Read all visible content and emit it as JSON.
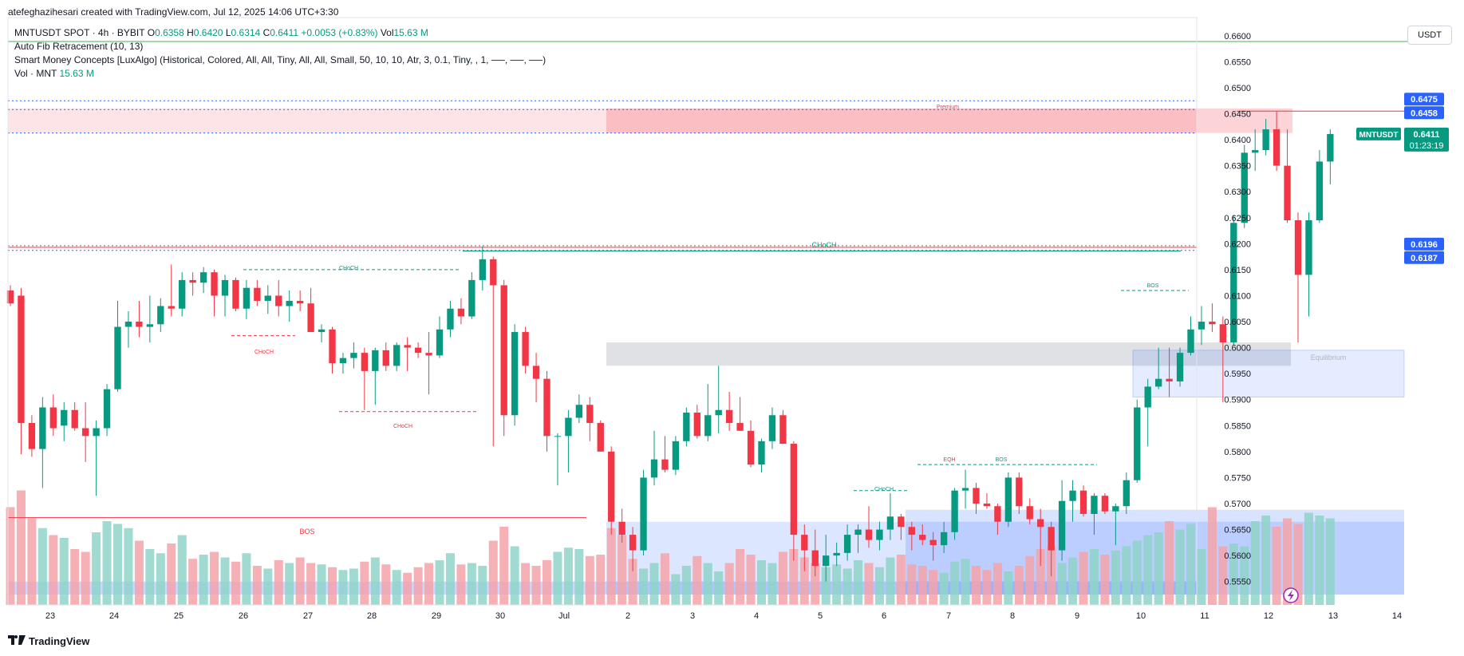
{
  "header": {
    "author_line": "atefeghazihesari created with TradingView.com, Jul 12, 2025 14:06 UTC+3:30"
  },
  "legend": {
    "symbol": "MNTUSDT SPOT · 4h · BYBIT",
    "o_label": "O",
    "o": "0.6358",
    "h_label": "H",
    "h": "0.6420",
    "l_label": "L",
    "l": "0.6314",
    "c_label": "C",
    "c": "0.6411",
    "change": "+0.0053 (+0.83%)",
    "vol_label": "Vol",
    "vol": "15.63 M",
    "indicator1": "Auto Fib Retracement (10, 13)",
    "indicator2": "Smart Money Concepts [LuxAlgo] (Historical, Colored, All, All, Tiny, All, All, Small, 50, 10, 10, Atr, 3, 0.1, Tiny, , 1, ──, ──, ──)",
    "indicator3_label": "Vol · MNT",
    "indicator3_value": "15.63 M"
  },
  "currency_button": "USDT",
  "branding": "TradingView",
  "colors": {
    "up": "#089981",
    "down": "#f23645",
    "vol_up": "#8fd3c8",
    "vol_down": "#f5a3aa",
    "accent": "#2962ff"
  },
  "chart_data": {
    "type": "candlestick",
    "symbol": "MNTUSDT",
    "interval": "4h",
    "x_ticks": [
      "23",
      "24",
      "25",
      "26",
      "27",
      "28",
      "29",
      "30",
      "Jul",
      "2",
      "3",
      "4",
      "5",
      "6",
      "7",
      "8",
      "9",
      "10",
      "11",
      "12",
      "13",
      "14"
    ],
    "y_ticks": [
      "0.6600",
      "0.6550",
      "0.6500",
      "0.6450",
      "0.6400",
      "0.6350",
      "0.6300",
      "0.6250",
      "0.6200",
      "0.6150",
      "0.6100",
      "0.6050",
      "0.6000",
      "0.5950",
      "0.5900",
      "0.5850",
      "0.5800",
      "0.5750",
      "0.5700",
      "0.5650",
      "0.5600",
      "0.5550"
    ],
    "ylim": [
      0.5505,
      0.6635
    ],
    "price_labels": [
      {
        "value": "0.6475",
        "color": "#2962ff",
        "y": 0.6475
      },
      {
        "value": "0.6458",
        "color": "#2962ff",
        "y": 0.6458
      },
      {
        "value": "0.6196",
        "color": "#2962ff",
        "y": 0.6196
      },
      {
        "value": "0.6187",
        "color": "#2962ff",
        "y": 0.6187
      }
    ],
    "last_price": {
      "symbol": "MNTUSDT",
      "value": "0.6411",
      "countdown": "01:23:19",
      "y": 0.6411
    },
    "annotations": [
      {
        "text": "Premium",
        "color": "#f23645"
      },
      {
        "text": "CHoCH",
        "color": "#089981"
      },
      {
        "text": "CHoCH",
        "color": "#089981"
      },
      {
        "text": "CHoCH",
        "color": "#f23645"
      },
      {
        "text": "CHoCH",
        "color": "#f23645"
      },
      {
        "text": "BOS",
        "color": "#f23645"
      },
      {
        "text": "BOS",
        "color": "#089981"
      },
      {
        "text": "BOS",
        "color": "#089981"
      },
      {
        "text": "CHoCH",
        "color": "#089981"
      },
      {
        "text": "EQH",
        "color": "#f23645"
      },
      {
        "text": "Equilibrium",
        "color": "#b2b5be"
      }
    ],
    "candles": [
      {
        "o": 0.611,
        "h": 0.612,
        "l": 0.608,
        "c": 0.6085
      },
      {
        "o": 0.61,
        "h": 0.6115,
        "l": 0.5795,
        "c": 0.5855
      },
      {
        "o": 0.5855,
        "h": 0.587,
        "l": 0.579,
        "c": 0.5805
      },
      {
        "o": 0.5805,
        "h": 0.5905,
        "l": 0.573,
        "c": 0.5885
      },
      {
        "o": 0.5885,
        "h": 0.591,
        "l": 0.583,
        "c": 0.5845
      },
      {
        "o": 0.585,
        "h": 0.5895,
        "l": 0.582,
        "c": 0.588
      },
      {
        "o": 0.588,
        "h": 0.5895,
        "l": 0.584,
        "c": 0.5845
      },
      {
        "o": 0.5845,
        "h": 0.5895,
        "l": 0.578,
        "c": 0.583
      },
      {
        "o": 0.583,
        "h": 0.586,
        "l": 0.5715,
        "c": 0.5845
      },
      {
        "o": 0.5845,
        "h": 0.593,
        "l": 0.583,
        "c": 0.592
      },
      {
        "o": 0.592,
        "h": 0.609,
        "l": 0.5915,
        "c": 0.604
      },
      {
        "o": 0.604,
        "h": 0.607,
        "l": 0.6,
        "c": 0.605
      },
      {
        "o": 0.605,
        "h": 0.609,
        "l": 0.602,
        "c": 0.604
      },
      {
        "o": 0.604,
        "h": 0.61,
        "l": 0.601,
        "c": 0.6045
      },
      {
        "o": 0.6045,
        "h": 0.6095,
        "l": 0.603,
        "c": 0.608
      },
      {
        "o": 0.608,
        "h": 0.616,
        "l": 0.606,
        "c": 0.6075
      },
      {
        "o": 0.6075,
        "h": 0.6145,
        "l": 0.606,
        "c": 0.613
      },
      {
        "o": 0.613,
        "h": 0.6145,
        "l": 0.61,
        "c": 0.6125
      },
      {
        "o": 0.6125,
        "h": 0.6155,
        "l": 0.6105,
        "c": 0.6145
      },
      {
        "o": 0.6145,
        "h": 0.615,
        "l": 0.606,
        "c": 0.61
      },
      {
        "o": 0.61,
        "h": 0.614,
        "l": 0.606,
        "c": 0.613
      },
      {
        "o": 0.613,
        "h": 0.6135,
        "l": 0.607,
        "c": 0.6075
      },
      {
        "o": 0.6075,
        "h": 0.613,
        "l": 0.6055,
        "c": 0.6115
      },
      {
        "o": 0.6115,
        "h": 0.613,
        "l": 0.608,
        "c": 0.609
      },
      {
        "o": 0.609,
        "h": 0.612,
        "l": 0.6065,
        "c": 0.61
      },
      {
        "o": 0.61,
        "h": 0.613,
        "l": 0.606,
        "c": 0.608
      },
      {
        "o": 0.608,
        "h": 0.611,
        "l": 0.605,
        "c": 0.609
      },
      {
        "o": 0.609,
        "h": 0.611,
        "l": 0.607,
        "c": 0.6085
      },
      {
        "o": 0.6085,
        "h": 0.6115,
        "l": 0.603,
        "c": 0.603
      },
      {
        "o": 0.603,
        "h": 0.6045,
        "l": 0.601,
        "c": 0.6035
      },
      {
        "o": 0.6035,
        "h": 0.604,
        "l": 0.595,
        "c": 0.597
      },
      {
        "o": 0.597,
        "h": 0.599,
        "l": 0.595,
        "c": 0.598
      },
      {
        "o": 0.598,
        "h": 0.601,
        "l": 0.596,
        "c": 0.599
      },
      {
        "o": 0.599,
        "h": 0.6,
        "l": 0.588,
        "c": 0.5955
      },
      {
        "o": 0.5955,
        "h": 0.6,
        "l": 0.589,
        "c": 0.5995
      },
      {
        "o": 0.5995,
        "h": 0.601,
        "l": 0.5955,
        "c": 0.5965
      },
      {
        "o": 0.5965,
        "h": 0.601,
        "l": 0.5955,
        "c": 0.6005
      },
      {
        "o": 0.6005,
        "h": 0.602,
        "l": 0.5955,
        "c": 0.6
      },
      {
        "o": 0.6,
        "h": 0.601,
        "l": 0.598,
        "c": 0.599
      },
      {
        "o": 0.599,
        "h": 0.603,
        "l": 0.591,
        "c": 0.5985
      },
      {
        "o": 0.5985,
        "h": 0.606,
        "l": 0.598,
        "c": 0.6035
      },
      {
        "o": 0.6035,
        "h": 0.609,
        "l": 0.602,
        "c": 0.6075
      },
      {
        "o": 0.6075,
        "h": 0.6095,
        "l": 0.6045,
        "c": 0.606
      },
      {
        "o": 0.606,
        "h": 0.6145,
        "l": 0.6055,
        "c": 0.613
      },
      {
        "o": 0.613,
        "h": 0.6195,
        "l": 0.611,
        "c": 0.617
      },
      {
        "o": 0.617,
        "h": 0.6175,
        "l": 0.581,
        "c": 0.612
      },
      {
        "o": 0.612,
        "h": 0.613,
        "l": 0.583,
        "c": 0.587
      },
      {
        "o": 0.587,
        "h": 0.6045,
        "l": 0.585,
        "c": 0.603
      },
      {
        "o": 0.603,
        "h": 0.604,
        "l": 0.595,
        "c": 0.5965
      },
      {
        "o": 0.5965,
        "h": 0.599,
        "l": 0.5895,
        "c": 0.594
      },
      {
        "o": 0.594,
        "h": 0.5955,
        "l": 0.58,
        "c": 0.583
      },
      {
        "o": 0.583,
        "h": 0.5835,
        "l": 0.5735,
        "c": 0.583
      },
      {
        "o": 0.583,
        "h": 0.588,
        "l": 0.576,
        "c": 0.5865
      },
      {
        "o": 0.5865,
        "h": 0.591,
        "l": 0.5855,
        "c": 0.589
      },
      {
        "o": 0.589,
        "h": 0.5905,
        "l": 0.582,
        "c": 0.5855
      },
      {
        "o": 0.5855,
        "h": 0.586,
        "l": 0.58,
        "c": 0.58
      },
      {
        "o": 0.58,
        "h": 0.581,
        "l": 0.564,
        "c": 0.5665
      },
      {
        "o": 0.5665,
        "h": 0.569,
        "l": 0.5625,
        "c": 0.564
      },
      {
        "o": 0.564,
        "h": 0.5655,
        "l": 0.557,
        "c": 0.561
      },
      {
        "o": 0.561,
        "h": 0.5765,
        "l": 0.56,
        "c": 0.575
      },
      {
        "o": 0.575,
        "h": 0.584,
        "l": 0.5735,
        "c": 0.5785
      },
      {
        "o": 0.5785,
        "h": 0.583,
        "l": 0.576,
        "c": 0.5765
      },
      {
        "o": 0.5765,
        "h": 0.583,
        "l": 0.5755,
        "c": 0.582
      },
      {
        "o": 0.582,
        "h": 0.5885,
        "l": 0.581,
        "c": 0.5875
      },
      {
        "o": 0.5875,
        "h": 0.589,
        "l": 0.5825,
        "c": 0.583
      },
      {
        "o": 0.583,
        "h": 0.593,
        "l": 0.582,
        "c": 0.587
      },
      {
        "o": 0.587,
        "h": 0.5965,
        "l": 0.5835,
        "c": 0.588
      },
      {
        "o": 0.588,
        "h": 0.5915,
        "l": 0.584,
        "c": 0.5855
      },
      {
        "o": 0.5855,
        "h": 0.5905,
        "l": 0.584,
        "c": 0.584
      },
      {
        "o": 0.584,
        "h": 0.586,
        "l": 0.577,
        "c": 0.5775
      },
      {
        "o": 0.5775,
        "h": 0.5825,
        "l": 0.576,
        "c": 0.582
      },
      {
        "o": 0.582,
        "h": 0.5885,
        "l": 0.5805,
        "c": 0.587
      },
      {
        "o": 0.587,
        "h": 0.588,
        "l": 0.582,
        "c": 0.5815
      },
      {
        "o": 0.5815,
        "h": 0.582,
        "l": 0.559,
        "c": 0.564
      },
      {
        "o": 0.564,
        "h": 0.566,
        "l": 0.557,
        "c": 0.561
      },
      {
        "o": 0.561,
        "h": 0.565,
        "l": 0.556,
        "c": 0.558
      },
      {
        "o": 0.558,
        "h": 0.564,
        "l": 0.555,
        "c": 0.56
      },
      {
        "o": 0.56,
        "h": 0.5625,
        "l": 0.558,
        "c": 0.5605
      },
      {
        "o": 0.5605,
        "h": 0.566,
        "l": 0.559,
        "c": 0.564
      },
      {
        "o": 0.564,
        "h": 0.566,
        "l": 0.5605,
        "c": 0.565
      },
      {
        "o": 0.565,
        "h": 0.5695,
        "l": 0.5615,
        "c": 0.563
      },
      {
        "o": 0.563,
        "h": 0.5665,
        "l": 0.561,
        "c": 0.565
      },
      {
        "o": 0.565,
        "h": 0.572,
        "l": 0.563,
        "c": 0.5675
      },
      {
        "o": 0.5675,
        "h": 0.568,
        "l": 0.563,
        "c": 0.5655
      },
      {
        "o": 0.5655,
        "h": 0.5665,
        "l": 0.561,
        "c": 0.564
      },
      {
        "o": 0.564,
        "h": 0.566,
        "l": 0.562,
        "c": 0.563
      },
      {
        "o": 0.563,
        "h": 0.5645,
        "l": 0.559,
        "c": 0.562
      },
      {
        "o": 0.562,
        "h": 0.5665,
        "l": 0.5605,
        "c": 0.5645
      },
      {
        "o": 0.5645,
        "h": 0.573,
        "l": 0.563,
        "c": 0.5725
      },
      {
        "o": 0.5725,
        "h": 0.5765,
        "l": 0.569,
        "c": 0.573
      },
      {
        "o": 0.573,
        "h": 0.574,
        "l": 0.568,
        "c": 0.57
      },
      {
        "o": 0.57,
        "h": 0.572,
        "l": 0.569,
        "c": 0.5695
      },
      {
        "o": 0.5695,
        "h": 0.57,
        "l": 0.564,
        "c": 0.5665
      },
      {
        "o": 0.5665,
        "h": 0.576,
        "l": 0.5655,
        "c": 0.575
      },
      {
        "o": 0.575,
        "h": 0.576,
        "l": 0.568,
        "c": 0.5695
      },
      {
        "o": 0.5695,
        "h": 0.571,
        "l": 0.566,
        "c": 0.567
      },
      {
        "o": 0.567,
        "h": 0.569,
        "l": 0.558,
        "c": 0.5655
      },
      {
        "o": 0.5655,
        "h": 0.5665,
        "l": 0.556,
        "c": 0.561
      },
      {
        "o": 0.561,
        "h": 0.5745,
        "l": 0.559,
        "c": 0.5705
      },
      {
        "o": 0.5705,
        "h": 0.5745,
        "l": 0.5665,
        "c": 0.5725
      },
      {
        "o": 0.5725,
        "h": 0.5735,
        "l": 0.5675,
        "c": 0.568
      },
      {
        "o": 0.568,
        "h": 0.572,
        "l": 0.564,
        "c": 0.5715
      },
      {
        "o": 0.5715,
        "h": 0.572,
        "l": 0.568,
        "c": 0.5685
      },
      {
        "o": 0.5685,
        "h": 0.57,
        "l": 0.562,
        "c": 0.5695
      },
      {
        "o": 0.5695,
        "h": 0.576,
        "l": 0.568,
        "c": 0.5745
      },
      {
        "o": 0.5745,
        "h": 0.59,
        "l": 0.574,
        "c": 0.5885
      },
      {
        "o": 0.5885,
        "h": 0.594,
        "l": 0.581,
        "c": 0.5925
      },
      {
        "o": 0.5925,
        "h": 0.6,
        "l": 0.592,
        "c": 0.594
      },
      {
        "o": 0.594,
        "h": 0.6,
        "l": 0.5905,
        "c": 0.5935
      },
      {
        "o": 0.5935,
        "h": 0.6,
        "l": 0.5925,
        "c": 0.599
      },
      {
        "o": 0.599,
        "h": 0.606,
        "l": 0.5985,
        "c": 0.6035
      },
      {
        "o": 0.6035,
        "h": 0.608,
        "l": 0.6005,
        "c": 0.605
      },
      {
        "o": 0.605,
        "h": 0.6085,
        "l": 0.603,
        "c": 0.6045
      },
      {
        "o": 0.6045,
        "h": 0.606,
        "l": 0.5895,
        "c": 0.601
      },
      {
        "o": 0.601,
        "h": 0.6255,
        "l": 0.6005,
        "c": 0.624
      },
      {
        "o": 0.624,
        "h": 0.639,
        "l": 0.623,
        "c": 0.6375
      },
      {
        "o": 0.6375,
        "h": 0.642,
        "l": 0.634,
        "c": 0.638
      },
      {
        "o": 0.638,
        "h": 0.644,
        "l": 0.637,
        "c": 0.642
      },
      {
        "o": 0.642,
        "h": 0.6455,
        "l": 0.634,
        "c": 0.635
      },
      {
        "o": 0.635,
        "h": 0.642,
        "l": 0.624,
        "c": 0.6245
      },
      {
        "o": 0.6245,
        "h": 0.626,
        "l": 0.601,
        "c": 0.614
      },
      {
        "o": 0.614,
        "h": 0.626,
        "l": 0.606,
        "c": 0.6245
      },
      {
        "o": 0.6245,
        "h": 0.638,
        "l": 0.624,
        "c": 0.6358
      },
      {
        "o": 0.6358,
        "h": 0.642,
        "l": 0.6314,
        "c": 0.6411
      }
    ],
    "volume_scale_note": "relative",
    "volumes": [
      0.7,
      0.82,
      0.62,
      0.55,
      0.5,
      0.48,
      0.4,
      0.38,
      0.52,
      0.6,
      0.58,
      0.55,
      0.46,
      0.4,
      0.37,
      0.44,
      0.5,
      0.33,
      0.36,
      0.38,
      0.34,
      0.31,
      0.37,
      0.28,
      0.26,
      0.32,
      0.3,
      0.34,
      0.3,
      0.29,
      0.27,
      0.25,
      0.26,
      0.31,
      0.34,
      0.29,
      0.25,
      0.23,
      0.27,
      0.3,
      0.32,
      0.37,
      0.29,
      0.3,
      0.28,
      0.46,
      0.56,
      0.42,
      0.3,
      0.28,
      0.32,
      0.38,
      0.41,
      0.4,
      0.35,
      0.36,
      0.55,
      0.5,
      0.33,
      0.26,
      0.3,
      0.37,
      0.22,
      0.28,
      0.35,
      0.3,
      0.24,
      0.3,
      0.4,
      0.36,
      0.32,
      0.3,
      0.38,
      0.4,
      0.34,
      0.3,
      0.27,
      0.29,
      0.26,
      0.32,
      0.3,
      0.27,
      0.34,
      0.36,
      0.29,
      0.28,
      0.25,
      0.23,
      0.31,
      0.33,
      0.28,
      0.25,
      0.3,
      0.24,
      0.28,
      0.35,
      0.4,
      0.42,
      0.3,
      0.34,
      0.38,
      0.4,
      0.36,
      0.39,
      0.42,
      0.46,
      0.5,
      0.52,
      0.6,
      0.54,
      0.58,
      0.4,
      0.7,
      0.42,
      0.44,
      0.42,
      0.6,
      0.64,
      0.56,
      0.62,
      0.58,
      0.66,
      0.64,
      0.62,
      0.56,
      0.52,
      0.44,
      0.32
    ]
  }
}
